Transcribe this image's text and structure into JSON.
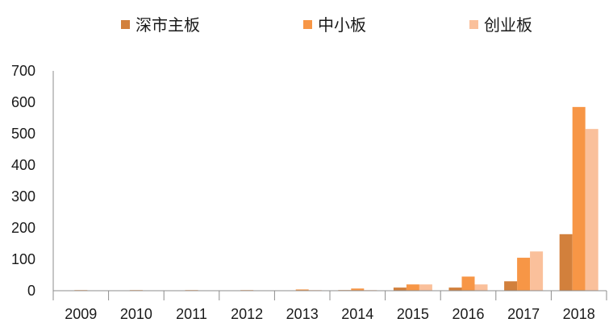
{
  "chart_data": {
    "type": "bar",
    "title": "",
    "xlabel": "",
    "ylabel": "",
    "categories": [
      "2009",
      "2010",
      "2011",
      "2012",
      "2013",
      "2014",
      "2015",
      "2016",
      "2017",
      "2018"
    ],
    "ylim": [
      0,
      700
    ],
    "yticks": [
      "0",
      "100",
      "200",
      "300",
      "400",
      "500",
      "600",
      "700"
    ],
    "grid": false,
    "legend_position": "top",
    "series": [
      {
        "name": "深市主板",
        "color": "#D2803C",
        "values": [
          1,
          1,
          1,
          1,
          1,
          2,
          10,
          10,
          30,
          180
        ]
      },
      {
        "name": "中小板",
        "color": "#F79646",
        "values": [
          2,
          2,
          2,
          2,
          4,
          7,
          20,
          45,
          105,
          585
        ]
      },
      {
        "name": "创业板",
        "color": "#FAC09B",
        "values": [
          1,
          1,
          1,
          1,
          2,
          2,
          20,
          20,
          125,
          515
        ]
      }
    ]
  }
}
